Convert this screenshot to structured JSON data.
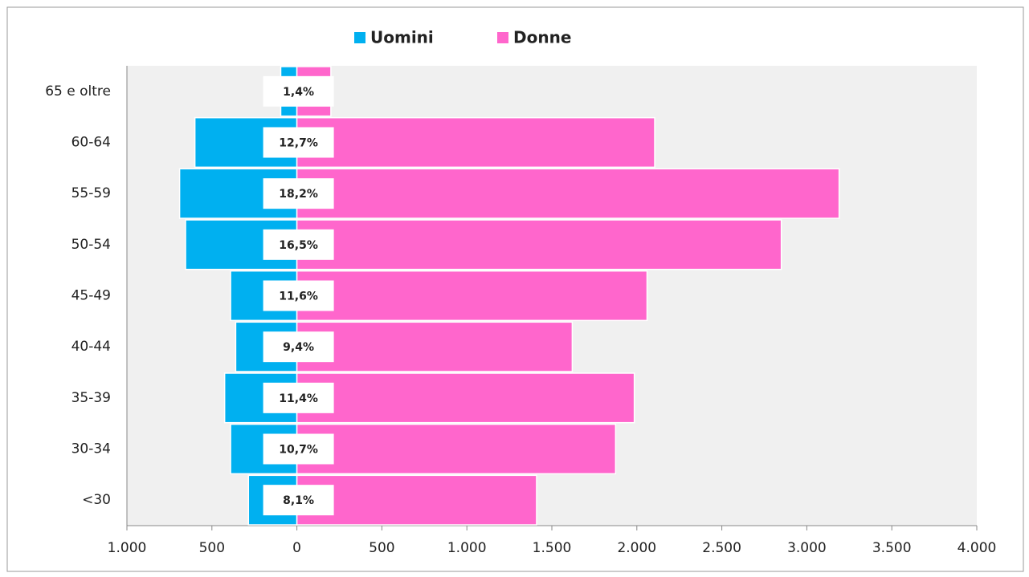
{
  "chart_data": {
    "type": "pyramid",
    "categories": [
      "65 e oltre",
      "60-64",
      "55-59",
      "50-54",
      "45-49",
      "40-44",
      "35-39",
      "30-34",
      "<30"
    ],
    "series": [
      {
        "name": "Uomini",
        "color": "#00b0f0",
        "values": [
          -95,
          -600,
          -690,
          -655,
          -390,
          -360,
          -425,
          -390,
          -285
        ]
      },
      {
        "name": "Donne",
        "color": "#ff66cc",
        "values": [
          200,
          2105,
          3190,
          2850,
          2060,
          1620,
          1985,
          1875,
          1410
        ]
      }
    ],
    "shares": {
      "values": [
        1.4,
        12.7,
        18.2,
        16.5,
        11.6,
        9.4,
        11.4,
        10.7,
        8.1
      ],
      "value_labels": [
        "1,4%",
        "12,7%",
        "18,2%",
        "16,5%",
        "11,6%",
        "9,4%",
        "11,4%",
        "10,7%",
        "8,1%"
      ]
    },
    "xlim": [
      -1000,
      4000
    ],
    "xticks": [
      {
        "value": -1000,
        "label": "1.000"
      },
      {
        "value": -500,
        "label": "500"
      },
      0,
      500,
      {
        "value": 1000,
        "label": "1.000"
      },
      {
        "value": 1500,
        "label": "1.500"
      },
      {
        "value": 2000,
        "label": "2.000"
      },
      {
        "value": 2500,
        "label": "2.500"
      },
      {
        "value": 3000,
        "label": "3.000"
      },
      {
        "value": 3500,
        "label": "3.500"
      },
      {
        "value": 4000,
        "label": "4.000"
      }
    ],
    "legend": "top"
  }
}
